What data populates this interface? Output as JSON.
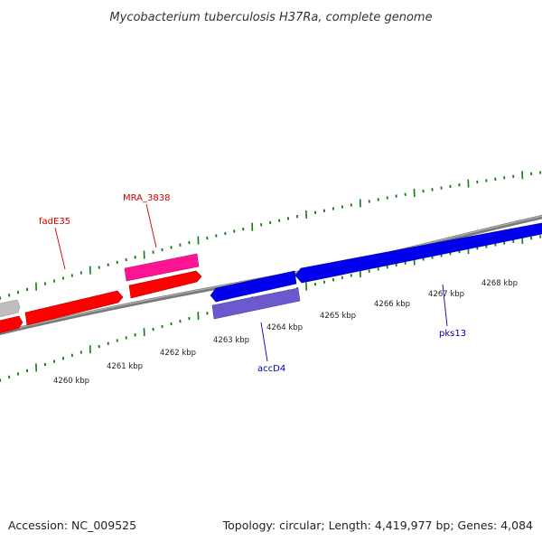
{
  "title": "Mycobacterium tuberculosis H37Ra, complete genome",
  "footer": {
    "accession": "Accession: NC_009525",
    "summary": "Topology: circular; Length: 4,419,977 bp; Genes: 4,084"
  },
  "colors": {
    "tick": "#0f7a0f",
    "backbone": "#808080",
    "forward_gene": "#ff0000",
    "forward_rna": "#ff1493",
    "reverse_gene": "#0000ee",
    "reverse_other": "#6a5acd",
    "unknown": "#bebebe",
    "label_red": "#cc0000",
    "label_blue": "#0000aa"
  },
  "scale_labels": [
    "4260 kbp",
    "4261 kbp",
    "4262 kbp",
    "4263 kbp",
    "4264 kbp",
    "4265 kbp",
    "4266 kbp",
    "4267 kbp",
    "4268 kbp"
  ],
  "gene_labels": [
    {
      "name": "fadE35",
      "strand": "forward"
    },
    {
      "name": "MRA_3838",
      "strand": "forward"
    },
    {
      "name": "accD4",
      "strand": "reverse"
    },
    {
      "name": "pks13",
      "strand": "reverse"
    }
  ],
  "features": [
    {
      "type": "gene",
      "strand": "forward",
      "color": "unknown"
    },
    {
      "type": "gene",
      "strand": "forward",
      "color": "forward_gene"
    },
    {
      "type": "gene",
      "strand": "forward",
      "color": "forward_gene"
    },
    {
      "type": "gene",
      "strand": "forward",
      "color": "forward_gene"
    },
    {
      "type": "rna",
      "strand": "forward",
      "color": "forward_rna"
    },
    {
      "type": "gene",
      "strand": "reverse",
      "color": "reverse_gene"
    },
    {
      "type": "gene",
      "strand": "reverse",
      "color": "reverse_gene"
    },
    {
      "type": "other",
      "strand": "reverse",
      "color": "reverse_other"
    }
  ]
}
